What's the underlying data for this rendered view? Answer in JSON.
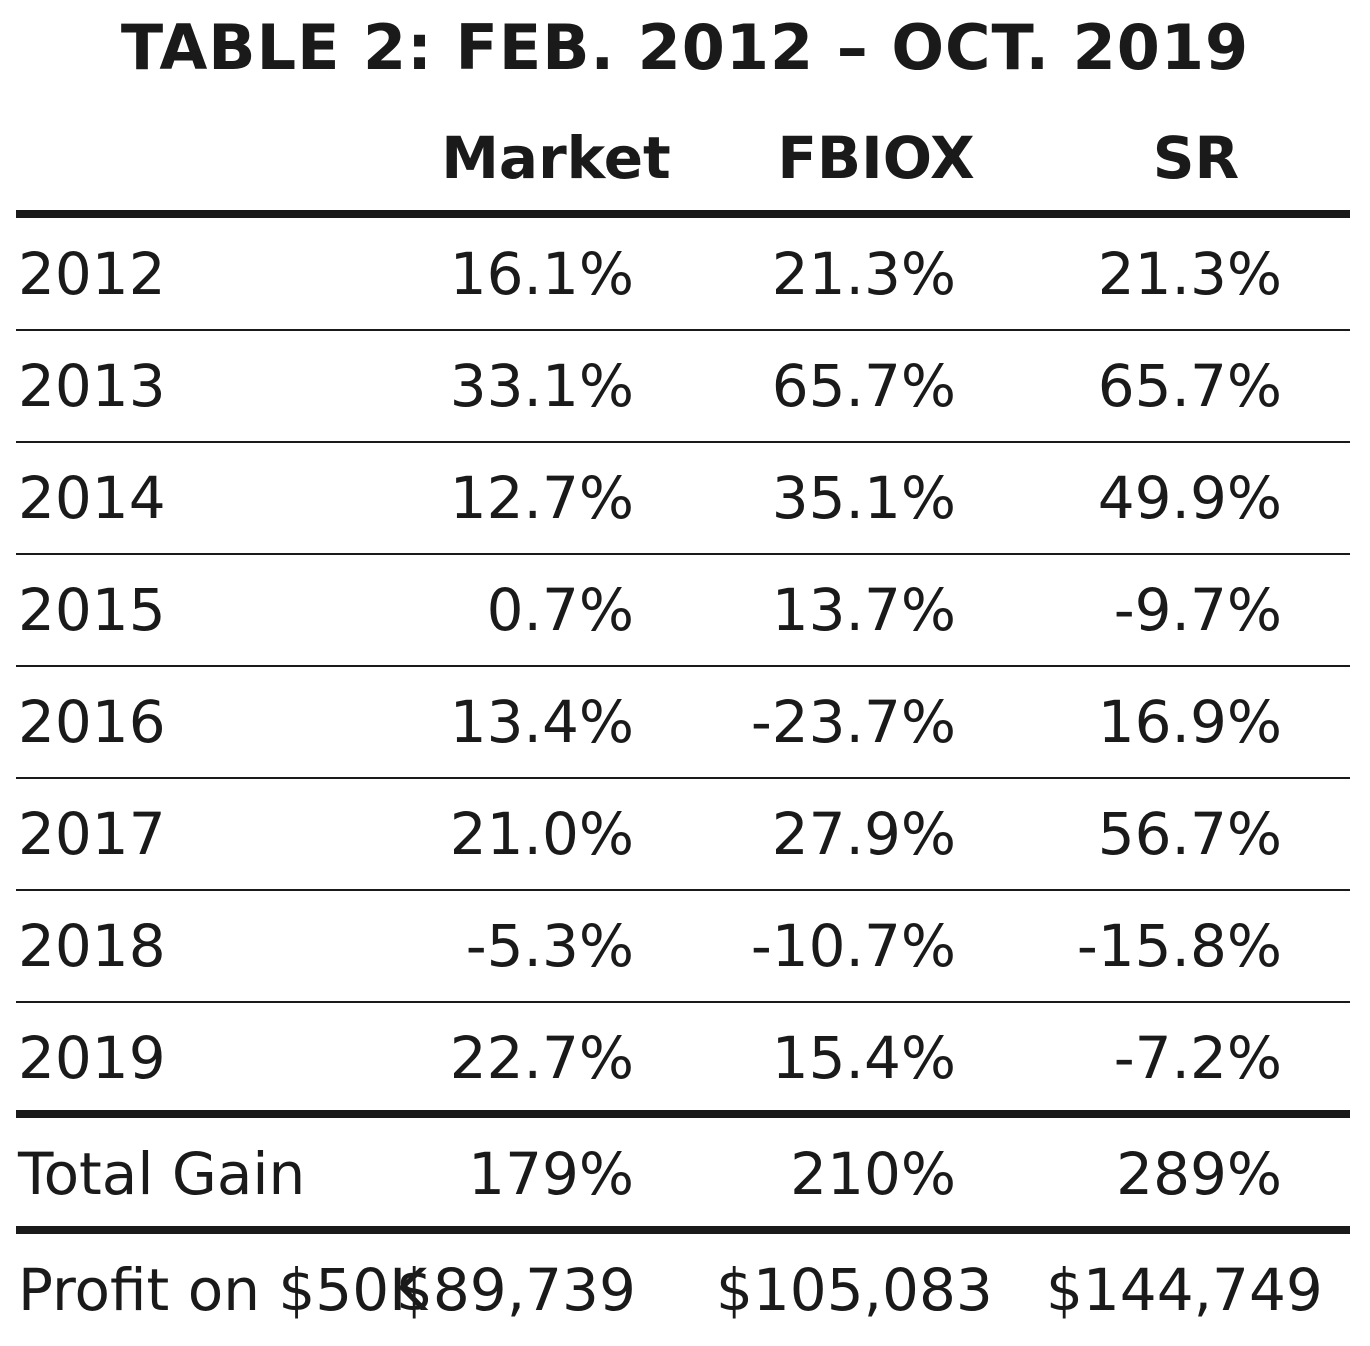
{
  "chart_data": {
    "type": "table",
    "title": "TABLE 2: FEB. 2012 – OCT. 2019",
    "columns": [
      "",
      "Market",
      "FBIOX",
      "SR"
    ],
    "rows": [
      {
        "label": "2012",
        "market": "16.1%",
        "fbiox": "21.3%",
        "sr": "21.3%"
      },
      {
        "label": "2013",
        "market": "33.1%",
        "fbiox": "65.7%",
        "sr": "65.7%"
      },
      {
        "label": "2014",
        "market": "12.7%",
        "fbiox": "35.1%",
        "sr": "49.9%"
      },
      {
        "label": "2015",
        "market": "0.7%",
        "fbiox": "13.7%",
        "sr": "-9.7%"
      },
      {
        "label": "2016",
        "market": "13.4%",
        "fbiox": "-23.7%",
        "sr": "16.9%"
      },
      {
        "label": "2017",
        "market": "21.0%",
        "fbiox": "27.9%",
        "sr": "56.7%"
      },
      {
        "label": "2018",
        "market": "-5.3%",
        "fbiox": "-10.7%",
        "sr": "-15.8%"
      },
      {
        "label": "2019",
        "market": "22.7%",
        "fbiox": "15.4%",
        "sr": "-7.2%"
      }
    ],
    "totals": [
      {
        "label": "Total Gain",
        "market": "179%",
        "fbiox": "210%",
        "sr": "289%"
      },
      {
        "label": "Profit on $50K",
        "market": "$89,739",
        "fbiox": "$105,083",
        "sr": "$144,749"
      }
    ]
  }
}
